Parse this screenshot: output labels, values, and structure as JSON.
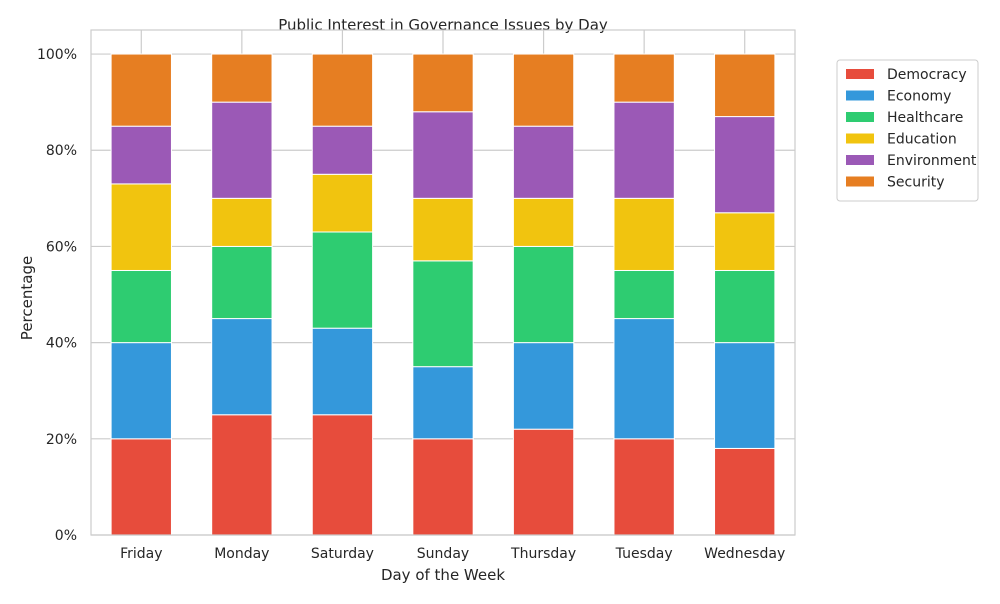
{
  "chart_data": {
    "type": "bar",
    "stacked": true,
    "title": "Public Interest in Governance Issues by Day",
    "xlabel": "Day of the Week",
    "ylabel": "Percentage",
    "ylim": [
      0,
      105
    ],
    "yticks": [
      0,
      20,
      40,
      60,
      80,
      100
    ],
    "ytick_labels": [
      "0%",
      "20%",
      "40%",
      "60%",
      "80%",
      "100%"
    ],
    "grid": true,
    "legend_position": "outside top-right",
    "categories": [
      "Friday",
      "Monday",
      "Saturday",
      "Sunday",
      "Thursday",
      "Tuesday",
      "Wednesday"
    ],
    "series": [
      {
        "name": "Democracy",
        "color": "#e74c3c",
        "values": [
          20,
          25,
          25,
          20,
          22,
          20,
          18
        ]
      },
      {
        "name": "Economy",
        "color": "#3498db",
        "values": [
          20,
          20,
          18,
          15,
          18,
          25,
          22
        ]
      },
      {
        "name": "Healthcare",
        "color": "#2ecc71",
        "values": [
          15,
          15,
          20,
          22,
          20,
          10,
          15
        ]
      },
      {
        "name": "Education",
        "color": "#f1c40f",
        "values": [
          18,
          10,
          12,
          13,
          10,
          15,
          12
        ]
      },
      {
        "name": "Environment",
        "color": "#9b59b6",
        "values": [
          12,
          20,
          10,
          18,
          15,
          20,
          20
        ]
      },
      {
        "name": "Security",
        "color": "#e67e22",
        "values": [
          15,
          10,
          15,
          12,
          15,
          10,
          13
        ]
      }
    ]
  }
}
